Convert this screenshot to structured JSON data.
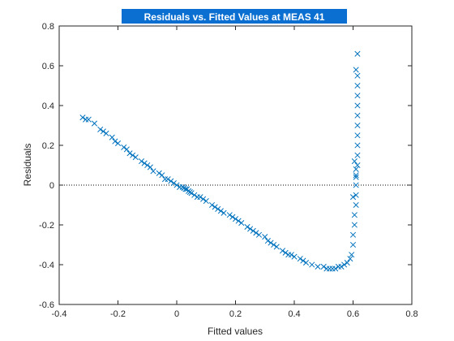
{
  "chart_data": {
    "type": "scatter",
    "title": "Residuals vs. Fitted Values at MEAS 41",
    "xlabel": "Fitted values",
    "ylabel": "Residuals",
    "xlim": [
      -0.4,
      0.8
    ],
    "ylim": [
      -0.6,
      0.8
    ],
    "xticks": [
      -0.4,
      -0.2,
      0,
      0.2,
      0.4,
      0.6,
      0.8
    ],
    "xtick_labels": [
      "-0.4",
      "-0.2",
      "0",
      "0.2",
      "0.4",
      "0.6",
      "0.8"
    ],
    "yticks": [
      -0.6,
      -0.4,
      -0.2,
      0,
      0.2,
      0.4,
      0.6,
      0.8
    ],
    "ytick_labels": [
      "-0.6",
      "-0.4",
      "-0.2",
      "0",
      "0.2",
      "0.4",
      "0.6",
      "0.8"
    ],
    "grid": false,
    "reference_line": {
      "y": 0,
      "style": "dotted"
    },
    "marker": "x",
    "colors": {
      "marker": "#0072bd",
      "title_bg": "#0a6fd0",
      "axis": "#262626"
    },
    "x": [
      -0.32,
      -0.31,
      -0.3,
      -0.28,
      -0.26,
      -0.25,
      -0.24,
      -0.22,
      -0.21,
      -0.2,
      -0.18,
      -0.17,
      -0.16,
      -0.15,
      -0.14,
      -0.12,
      -0.11,
      -0.1,
      -0.09,
      -0.08,
      -0.06,
      -0.05,
      -0.04,
      -0.03,
      -0.02,
      -0.01,
      0.0,
      0.01,
      0.02,
      0.025,
      0.03,
      0.035,
      0.04,
      0.045,
      0.05,
      0.06,
      0.07,
      0.08,
      0.09,
      0.1,
      0.12,
      0.13,
      0.14,
      0.15,
      0.16,
      0.18,
      0.19,
      0.2,
      0.21,
      0.22,
      0.24,
      0.25,
      0.26,
      0.27,
      0.28,
      0.3,
      0.31,
      0.32,
      0.33,
      0.34,
      0.36,
      0.37,
      0.38,
      0.39,
      0.4,
      0.42,
      0.43,
      0.44,
      0.46,
      0.48,
      0.5,
      0.51,
      0.52,
      0.53,
      0.54,
      0.55,
      0.56,
      0.57,
      0.58,
      0.59,
      0.595,
      0.6,
      0.6,
      0.605,
      0.605,
      0.61,
      0.61,
      0.61,
      0.61,
      0.615,
      0.615,
      0.615,
      0.615,
      0.615,
      0.615,
      0.615,
      0.615,
      0.615,
      0.615,
      0.61,
      0.61,
      0.61,
      0.615,
      0.605,
      0.6
    ],
    "y": [
      0.34,
      0.33,
      0.33,
      0.31,
      0.28,
      0.27,
      0.26,
      0.24,
      0.22,
      0.21,
      0.19,
      0.18,
      0.16,
      0.15,
      0.14,
      0.12,
      0.11,
      0.1,
      0.09,
      0.07,
      0.06,
      0.05,
      0.03,
      0.03,
      0.02,
      0.01,
      0.0,
      -0.01,
      -0.01,
      -0.015,
      -0.02,
      -0.02,
      -0.03,
      -0.035,
      -0.04,
      -0.05,
      -0.06,
      -0.06,
      -0.07,
      -0.08,
      -0.1,
      -0.11,
      -0.12,
      -0.13,
      -0.14,
      -0.15,
      -0.16,
      -0.17,
      -0.18,
      -0.19,
      -0.21,
      -0.22,
      -0.23,
      -0.24,
      -0.25,
      -0.26,
      -0.28,
      -0.29,
      -0.3,
      -0.31,
      -0.33,
      -0.34,
      -0.35,
      -0.35,
      -0.36,
      -0.37,
      -0.38,
      -0.39,
      -0.4,
      -0.41,
      -0.41,
      -0.42,
      -0.42,
      -0.42,
      -0.42,
      -0.41,
      -0.41,
      -0.4,
      -0.39,
      -0.37,
      -0.35,
      -0.3,
      -0.25,
      -0.2,
      -0.15,
      -0.1,
      -0.05,
      0.0,
      0.05,
      0.1,
      0.15,
      0.2,
      0.25,
      0.3,
      0.35,
      0.4,
      0.45,
      0.5,
      0.55,
      0.58,
      0.08,
      0.04,
      0.66,
      0.12,
      -0.06
    ]
  }
}
